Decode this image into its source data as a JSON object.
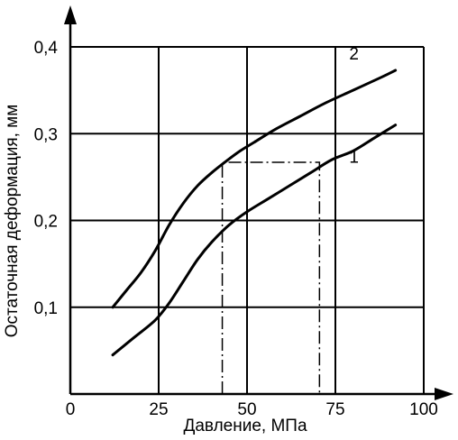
{
  "chart_data": {
    "type": "line",
    "xlabel": "Давление, МПа",
    "ylabel": "Остаточная деформация, мм",
    "xlim": [
      0,
      100
    ],
    "ylim": [
      0,
      0.4
    ],
    "xticks": [
      0,
      25,
      50,
      75,
      100
    ],
    "xtick_labels": [
      "0",
      "25",
      "50",
      "75",
      "100"
    ],
    "yticks": [
      0.1,
      0.2,
      0.3,
      0.4
    ],
    "ytick_labels": [
      "0,1",
      "0,2",
      "0,3",
      "0,4"
    ],
    "grid": true,
    "series": [
      {
        "name": "1",
        "x": [
          12,
          18,
          24,
          28,
          32,
          36,
          40,
          45,
          50,
          56,
          62,
          68,
          74,
          80,
          86,
          92
        ],
        "y": [
          0.045,
          0.065,
          0.085,
          0.105,
          0.13,
          0.155,
          0.175,
          0.195,
          0.21,
          0.225,
          0.24,
          0.255,
          0.27,
          0.28,
          0.295,
          0.31
        ]
      },
      {
        "name": "2",
        "x": [
          12,
          16,
          20,
          24,
          28,
          32,
          36,
          40,
          44,
          48,
          52,
          58,
          65,
          72,
          80,
          88,
          92
        ],
        "y": [
          0.1,
          0.12,
          0.14,
          0.165,
          0.195,
          0.22,
          0.24,
          0.255,
          0.268,
          0.28,
          0.29,
          0.305,
          0.32,
          0.335,
          0.35,
          0.365,
          0.373
        ]
      }
    ],
    "annotations": [
      {
        "type": "guide",
        "style": "dash-dot",
        "points": [
          [
            43,
            0.0
          ],
          [
            43,
            0.267
          ],
          [
            70.5,
            0.267
          ],
          [
            70.5,
            0.0
          ]
        ]
      }
    ]
  }
}
